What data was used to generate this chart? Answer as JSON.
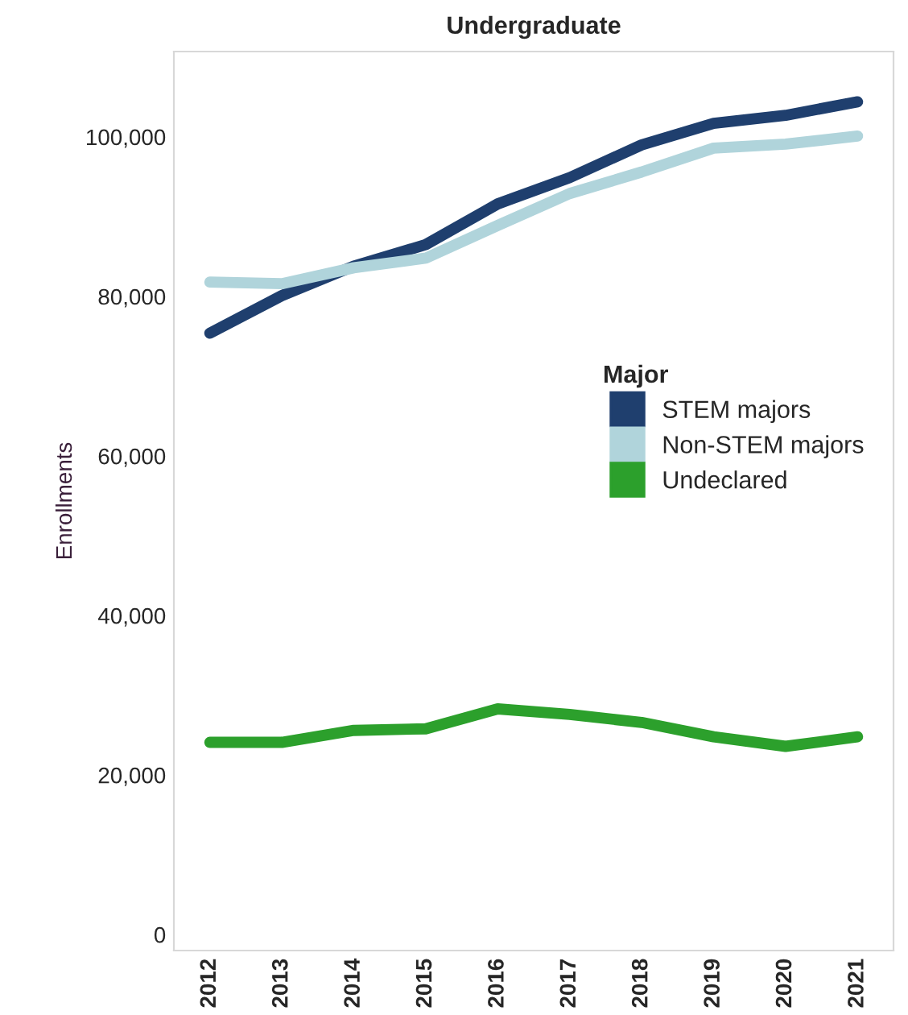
{
  "chart_data": {
    "type": "line",
    "title": "Undergraduate",
    "ylabel": "Enrollments",
    "legend_title": "Major",
    "legend": "right",
    "categories": [
      "2012",
      "2013",
      "2014",
      "2015",
      "2016",
      "2017",
      "2018",
      "2019",
      "2020",
      "2021"
    ],
    "series": [
      {
        "name": "STEM majors",
        "color": "#1f3f6e",
        "values": [
          75400,
          80100,
          83800,
          86500,
          91600,
          94900,
          99000,
          101700,
          102700,
          104400
        ]
      },
      {
        "name": "Non-STEM majors",
        "color": "#b0d4db",
        "values": [
          81800,
          81600,
          83600,
          84800,
          88900,
          92900,
          95600,
          98600,
          99100,
          100100
        ]
      },
      {
        "name": "Undeclared",
        "color": "#2ca02c",
        "values": [
          24100,
          24100,
          25600,
          25800,
          28300,
          27600,
          26600,
          24800,
          23600,
          24800
        ]
      }
    ],
    "ylim": [
      -2000,
      110700
    ],
    "yticks": [
      {
        "value": 0,
        "label": "0"
      },
      {
        "value": 20000,
        "label": "20,000"
      },
      {
        "value": 40000,
        "label": "40,000"
      },
      {
        "value": 60000,
        "label": "60,000"
      },
      {
        "value": 80000,
        "label": "80,000"
      },
      {
        "value": 100000,
        "label": "100,000"
      }
    ],
    "grid": false
  }
}
